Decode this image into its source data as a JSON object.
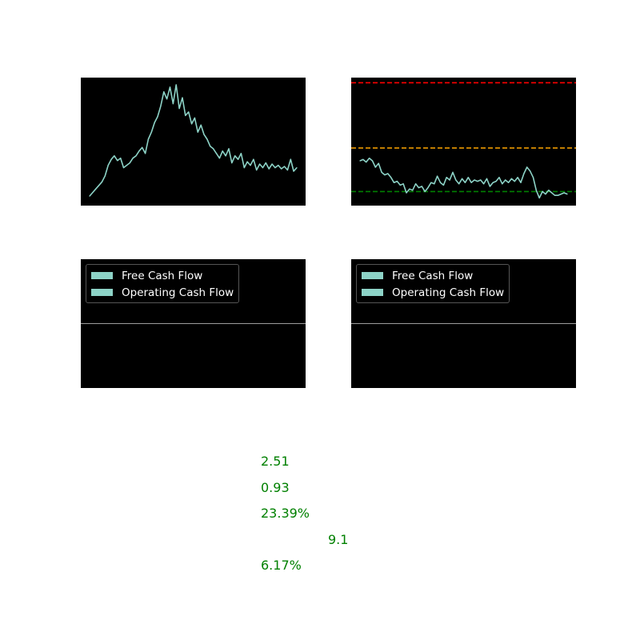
{
  "colors": {
    "line": "#8dd3c7",
    "panel_bg": "#000000",
    "upper_band": "#ff0000",
    "mid_band": "#ffa500",
    "lower_band": "#008000",
    "zero_line": "#d0d0d0",
    "metric_text": "#008000"
  },
  "chart_data": [
    {
      "type": "line",
      "name": "price-history",
      "title": "",
      "xlabel": "",
      "ylabel": "",
      "ylim": [
        0,
        100
      ],
      "x": [
        0,
        4,
        8,
        12,
        16,
        20,
        24,
        28,
        32,
        36,
        40,
        44,
        48,
        52,
        56,
        60,
        64,
        68,
        72,
        76,
        80,
        84,
        88,
        92,
        96,
        100,
        104,
        108,
        112,
        116,
        120,
        124,
        128,
        132,
        136,
        140,
        144,
        148,
        152,
        156,
        160,
        164,
        168,
        172,
        176,
        180,
        184,
        188,
        192,
        196,
        200,
        204,
        208,
        212,
        216,
        220,
        224,
        228,
        232,
        236,
        240,
        244,
        248,
        252,
        256,
        260,
        264,
        268
      ],
      "values": [
        4,
        7,
        10,
        13,
        16,
        21,
        30,
        35,
        38,
        34,
        36,
        28,
        30,
        32,
        36,
        38,
        42,
        45,
        40,
        52,
        58,
        66,
        71,
        80,
        92,
        86,
        96,
        82,
        98,
        78,
        87,
        72,
        75,
        65,
        70,
        58,
        64,
        56,
        52,
        46,
        44,
        40,
        36,
        42,
        38,
        44,
        32,
        38,
        35,
        40,
        28,
        33,
        30,
        35,
        26,
        31,
        28,
        32,
        27,
        31,
        28,
        30,
        27,
        29,
        26,
        35,
        25,
        28
      ]
    },
    {
      "type": "line",
      "name": "ratio-with-bands",
      "title": "",
      "xlabel": "",
      "ylabel": "",
      "ylim": [
        0,
        100
      ],
      "reference_lines": [
        {
          "label": "upper",
          "value": 96,
          "color": "#ff0000"
        },
        {
          "label": "middle",
          "value": 45,
          "color": "#ffa500"
        },
        {
          "label": "lower",
          "value": 11,
          "color": "#008000"
        }
      ],
      "x": [
        0,
        4,
        8,
        12,
        16,
        20,
        24,
        28,
        32,
        36,
        40,
        44,
        48,
        52,
        56,
        60,
        64,
        68,
        72,
        76,
        80,
        84,
        88,
        92,
        96,
        100,
        104,
        108,
        112,
        116,
        120,
        124,
        128,
        132,
        136,
        140,
        144,
        148,
        152,
        156,
        160,
        164,
        168,
        172,
        176,
        180,
        184,
        188,
        192,
        196,
        200,
        204,
        208,
        212,
        216,
        220,
        224,
        228,
        232,
        236,
        240,
        244,
        248,
        252,
        256,
        260,
        264,
        268
      ],
      "values": [
        35,
        36,
        34,
        37,
        35,
        30,
        33,
        26,
        24,
        25,
        22,
        18,
        19,
        16,
        17,
        10,
        13,
        12,
        17,
        14,
        15,
        11,
        14,
        18,
        17,
        23,
        18,
        16,
        22,
        20,
        26,
        20,
        17,
        21,
        18,
        22,
        18,
        20,
        19,
        20,
        17,
        21,
        15,
        18,
        19,
        22,
        17,
        20,
        18,
        21,
        19,
        22,
        18,
        25,
        30,
        27,
        22,
        12,
        6,
        11,
        9,
        12,
        10,
        8,
        8,
        9,
        10,
        9
      ]
    },
    {
      "type": "bar",
      "name": "cash-flow-left",
      "title": "",
      "xlabel": "",
      "ylabel": "",
      "ylim": [
        -1,
        1
      ],
      "categories": [],
      "series": [
        {
          "name": "Free Cash Flow",
          "values": []
        },
        {
          "name": "Operating Cash Flow",
          "values": []
        }
      ]
    },
    {
      "type": "bar",
      "name": "cash-flow-right",
      "title": "",
      "xlabel": "",
      "ylabel": "",
      "ylim": [
        -1,
        1
      ],
      "categories": [],
      "series": [
        {
          "name": "Free Cash Flow",
          "values": []
        },
        {
          "name": "Operating Cash Flow",
          "values": []
        }
      ]
    }
  ],
  "metrics": [
    "2.51",
    "0.93",
    "23.39%",
    "9.1",
    "6.17%"
  ]
}
